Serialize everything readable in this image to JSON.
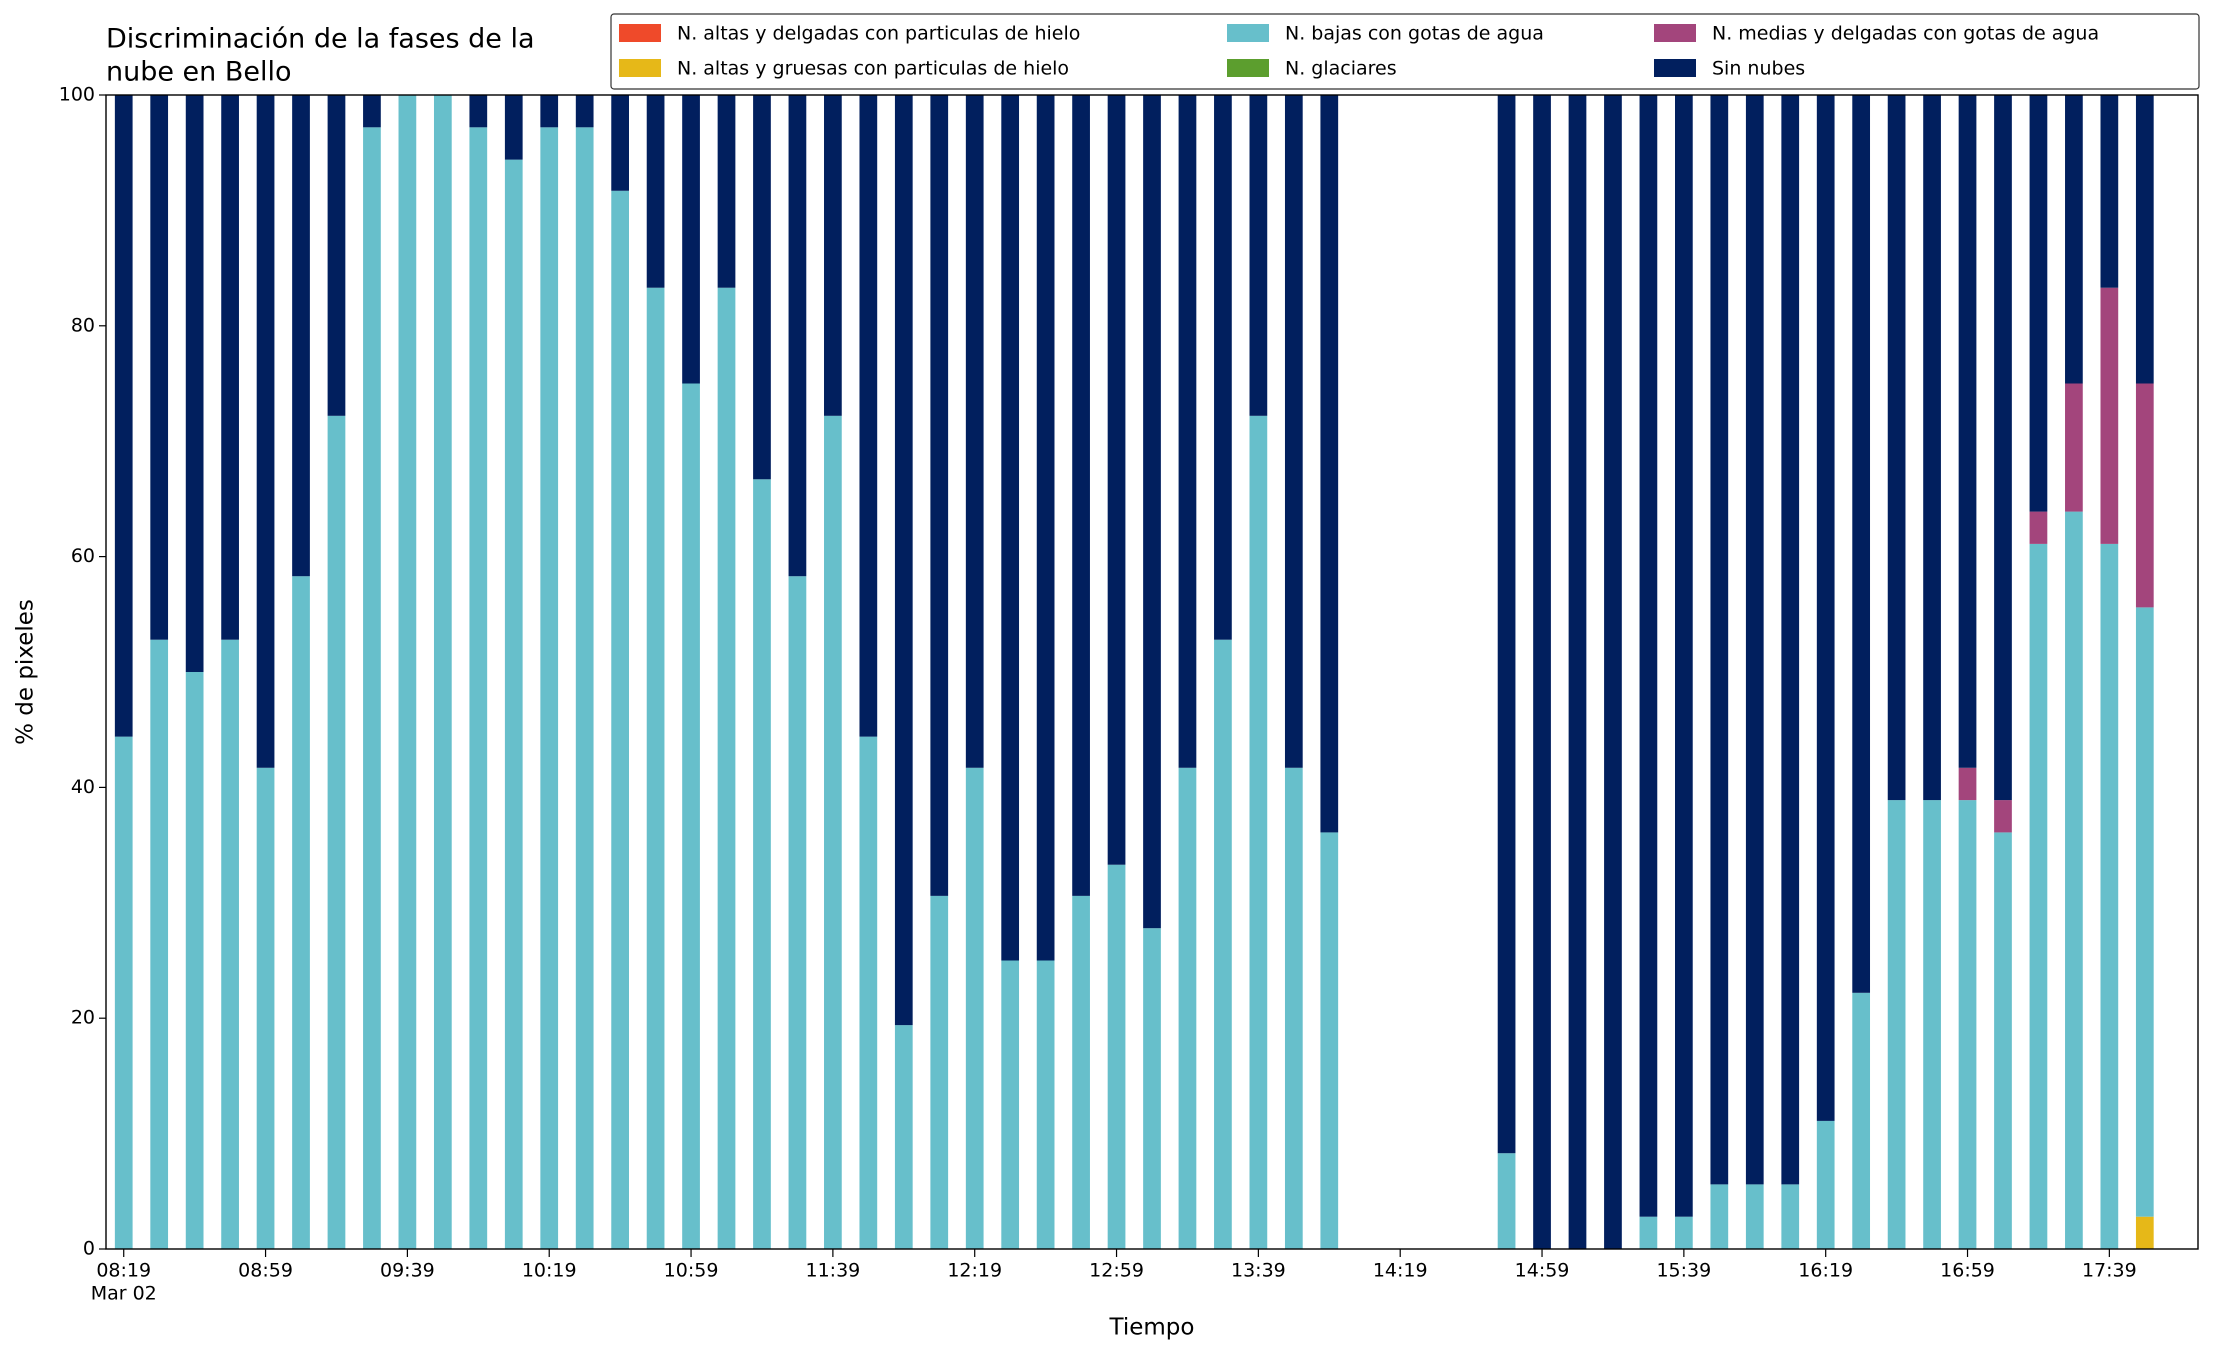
{
  "chart_data": {
    "type": "stacked_bar",
    "title": [
      "Discriminación de la fases de la",
      "nube en Bello"
    ],
    "xlabel": "Tiempo",
    "ylabel": "% de pixeles",
    "xdate": "Mar 02",
    "xlim": [
      "08:14",
      "18:04"
    ],
    "xticks": [
      "08:19",
      "08:59",
      "09:39",
      "10:19",
      "10:59",
      "11:39",
      "12:19",
      "12:59",
      "13:39",
      "14:19",
      "14:59",
      "15:39",
      "16:19",
      "16:59",
      "17:39"
    ],
    "ylim": [
      0,
      100
    ],
    "yticks": [
      0,
      20,
      40,
      60,
      80,
      100
    ],
    "legend": "upper right",
    "x": [
      "08:19",
      "08:29",
      "08:39",
      "08:49",
      "08:59",
      "09:09",
      "09:19",
      "09:29",
      "09:39",
      "09:49",
      "09:59",
      "10:09",
      "10:19",
      "10:29",
      "10:39",
      "10:49",
      "10:59",
      "11:09",
      "11:19",
      "11:29",
      "11:39",
      "11:49",
      "11:59",
      "12:09",
      "12:19",
      "12:29",
      "12:39",
      "12:49",
      "12:59",
      "13:09",
      "13:19",
      "13:29",
      "13:39",
      "13:49",
      "13:59",
      "14:49",
      "14:59",
      "15:09",
      "15:19",
      "15:29",
      "15:39",
      "15:49",
      "15:59",
      "16:09",
      "16:19",
      "16:29",
      "16:39",
      "16:49",
      "16:59",
      "17:09",
      "17:19",
      "17:29",
      "17:39",
      "17:49"
    ],
    "series": [
      {
        "name": "N. altas y delgadas con particulas de hielo",
        "color": "#ef4a2a",
        "values": [
          0,
          0,
          0,
          0,
          0,
          0,
          0,
          0,
          0,
          0,
          0,
          0,
          0,
          0,
          0,
          0,
          0,
          0,
          0,
          0,
          0,
          0,
          0,
          0,
          0,
          0,
          0,
          0,
          0,
          0,
          0,
          0,
          0,
          0,
          0,
          0,
          0,
          0,
          0,
          0,
          0,
          0,
          0,
          0,
          0,
          0,
          0,
          0,
          0,
          0,
          0,
          0,
          0,
          0
        ]
      },
      {
        "name": "N. altas y gruesas con particulas de hielo",
        "color": "#e6b818",
        "values": [
          0,
          0,
          0,
          0,
          0,
          0,
          0,
          0,
          0,
          0,
          0,
          0,
          0,
          0,
          0,
          0,
          0,
          0,
          0,
          0,
          0,
          0,
          0,
          0,
          0,
          0,
          0,
          0,
          0,
          0,
          0,
          0,
          0,
          0,
          0,
          0,
          0,
          0,
          0,
          0,
          0,
          0,
          0,
          0,
          0,
          0,
          0,
          0,
          0,
          0,
          0,
          0,
          0,
          2.8
        ]
      },
      {
        "name": "N. bajas con gotas de agua",
        "color": "#67bfcb",
        "values": [
          44.4,
          52.8,
          50,
          52.8,
          41.7,
          58.3,
          72.2,
          97.2,
          100,
          100,
          97.2,
          94.4,
          97.2,
          97.2,
          91.7,
          83.3,
          75,
          83.3,
          66.7,
          58.3,
          72.2,
          44.4,
          19.4,
          30.6,
          41.7,
          25,
          25,
          30.6,
          33.3,
          27.8,
          41.7,
          52.8,
          72.2,
          41.7,
          36.1,
          8.3,
          0,
          0,
          0,
          2.8,
          2.8,
          5.6,
          5.6,
          5.6,
          11.1,
          22.2,
          38.9,
          38.9,
          38.9,
          36.1,
          61.1,
          63.9,
          61.1,
          52.8
        ]
      },
      {
        "name": "N. glaciares",
        "color": "#5c9e2e",
        "values": [
          0,
          0,
          0,
          0,
          0,
          0,
          0,
          0,
          0,
          0,
          0,
          0,
          0,
          0,
          0,
          0,
          0,
          0,
          0,
          0,
          0,
          0,
          0,
          0,
          0,
          0,
          0,
          0,
          0,
          0,
          0,
          0,
          0,
          0,
          0,
          0,
          0,
          0,
          0,
          0,
          0,
          0,
          0,
          0,
          0,
          0,
          0,
          0,
          0,
          0,
          0,
          0,
          0,
          0
        ]
      },
      {
        "name": "N. medias y delgadas con gotas de agua",
        "color": "#a3457c",
        "values": [
          0,
          0,
          0,
          0,
          0,
          0,
          0,
          0,
          0,
          0,
          0,
          0,
          0,
          0,
          0,
          0,
          0,
          0,
          0,
          0,
          0,
          0,
          0,
          0,
          0,
          0,
          0,
          0,
          0,
          0,
          0,
          0,
          0,
          0,
          0,
          0,
          0,
          0,
          0,
          0,
          0,
          0,
          0,
          0,
          0,
          0,
          0,
          0,
          2.8,
          2.8,
          2.8,
          11.1,
          22.2,
          19.4
        ]
      },
      {
        "name": "Sin nubes",
        "color": "#011f5e",
        "values": [
          55.6,
          47.2,
          50,
          47.2,
          58.3,
          41.7,
          27.8,
          2.8,
          0,
          0,
          2.8,
          5.6,
          2.8,
          2.8,
          8.3,
          16.7,
          25,
          16.7,
          33.3,
          41.7,
          27.8,
          55.6,
          80.6,
          69.4,
          58.3,
          75,
          75,
          69.4,
          66.7,
          72.2,
          58.3,
          47.2,
          27.8,
          58.3,
          63.9,
          91.7,
          100,
          100,
          100,
          97.2,
          97.2,
          94.4,
          94.4,
          94.4,
          88.9,
          77.8,
          61.1,
          61.1,
          58.3,
          61.1,
          36.1,
          25,
          16.7,
          25
        ]
      }
    ]
  }
}
